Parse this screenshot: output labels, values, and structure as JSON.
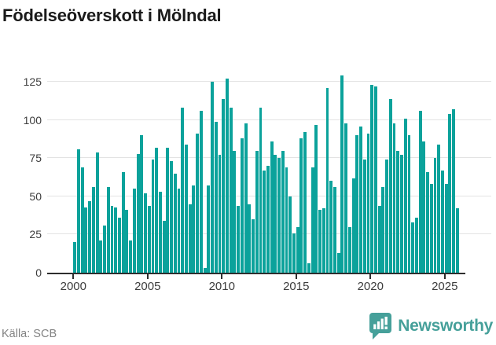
{
  "title": "Födelseöverskott i Mölndal",
  "source": "Källa: SCB",
  "branding": {
    "logo_text": "Newsworthy",
    "logo_icon": "bar-chart-speech-bubble-icon",
    "logo_color": "#46a09a"
  },
  "chart_data": {
    "type": "bar",
    "frequency": "quarterly",
    "start": "2000-Q1",
    "end": "2025-Q4",
    "values": [
      20,
      81,
      69,
      43,
      47,
      56,
      79,
      21,
      31,
      56,
      44,
      43,
      36,
      66,
      41,
      21,
      55,
      78,
      90,
      52,
      44,
      74,
      82,
      53,
      34,
      82,
      73,
      65,
      55,
      108,
      84,
      45,
      57,
      91,
      106,
      3,
      57,
      125,
      99,
      77,
      114,
      127,
      108,
      80,
      44,
      88,
      98,
      45,
      35,
      80,
      108,
      67,
      70,
      86,
      77,
      75,
      80,
      69,
      50,
      26,
      30,
      88,
      92,
      6,
      69,
      97,
      41,
      42,
      121,
      60,
      56,
      13,
      129,
      98,
      30,
      62,
      90,
      96,
      74,
      91,
      123,
      122,
      44,
      56,
      74,
      114,
      98,
      80,
      77,
      101,
      90,
      33,
      36,
      106,
      86,
      66,
      58,
      75,
      84,
      67,
      58,
      104,
      107,
      42
    ],
    "xticks": [
      2000,
      2005,
      2010,
      2015,
      2020,
      2025
    ],
    "yticks": [
      0,
      25,
      50,
      75,
      100,
      125
    ],
    "ylim": [
      0,
      132
    ],
    "bar_color": "#0ba29b",
    "grid": true,
    "title": "Födelseöverskott i Mölndal",
    "xlabel": "",
    "ylabel": ""
  }
}
